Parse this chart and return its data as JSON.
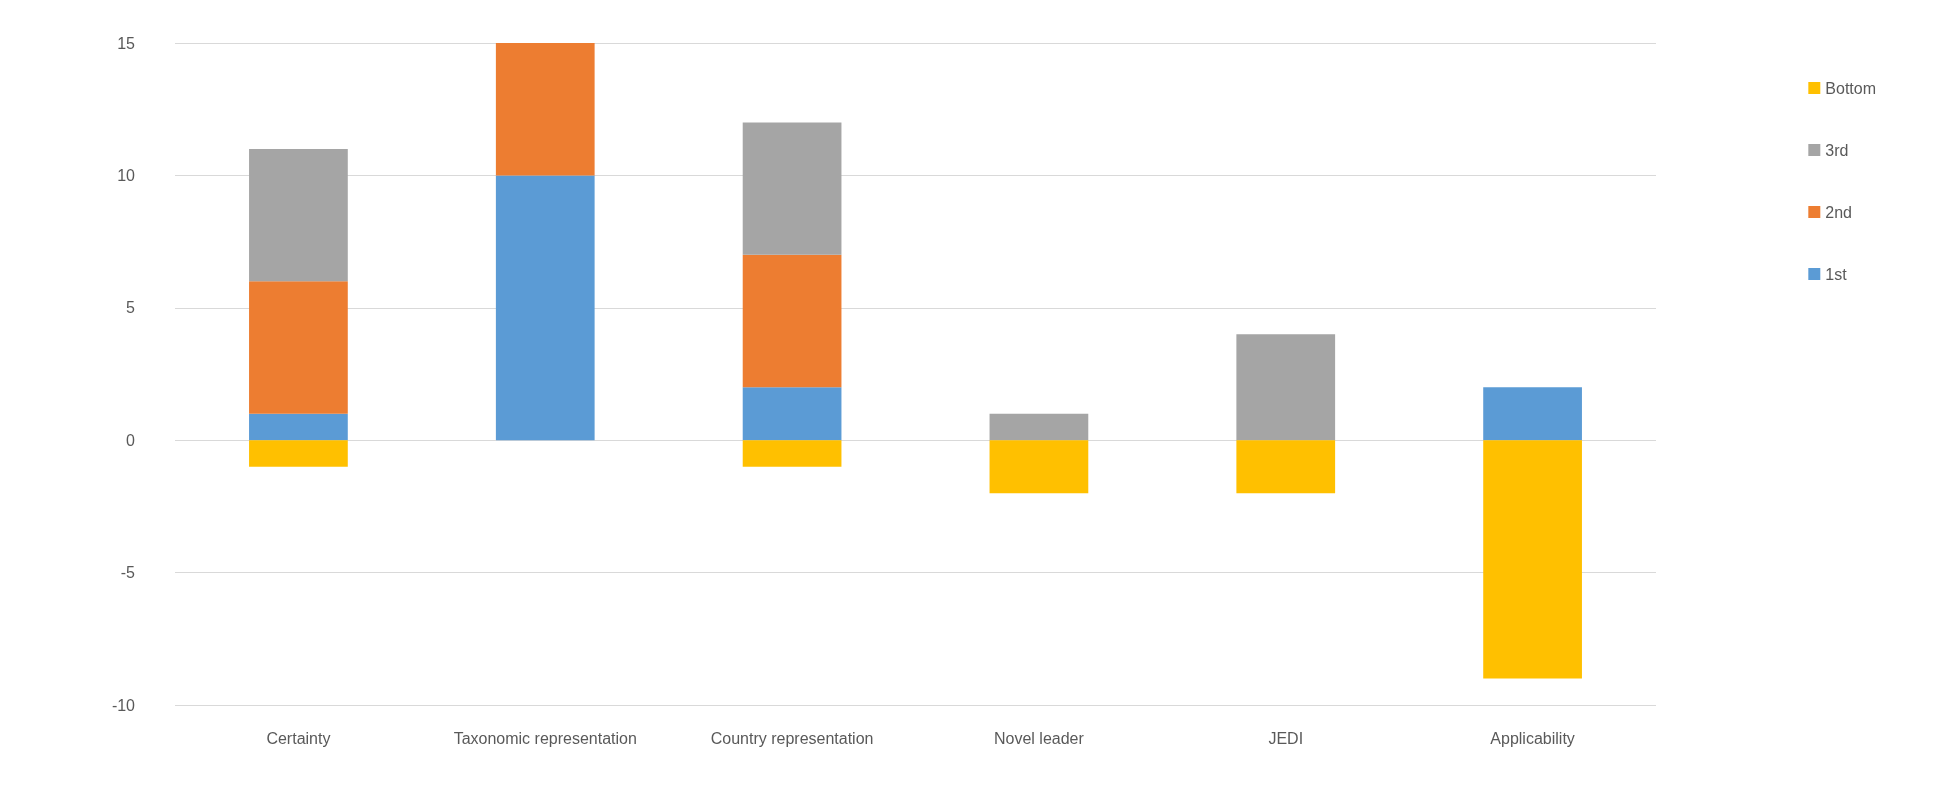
{
  "chart_data": {
    "type": "bar",
    "stacked": true,
    "categories": [
      "Certainty",
      "Taxonomic representation",
      "Country representation",
      "Novel leader",
      "JEDI",
      "Applicability"
    ],
    "series": [
      {
        "name": "1st",
        "color": "#5b9bd5",
        "values": [
          1,
          10,
          2,
          0,
          0,
          2
        ]
      },
      {
        "name": "2nd",
        "color": "#ed7d31",
        "values": [
          5,
          5,
          5,
          0,
          0,
          0
        ]
      },
      {
        "name": "3rd",
        "color": "#a5a5a5",
        "values": [
          5,
          0,
          5,
          1,
          4,
          0
        ]
      },
      {
        "name": "Bottom",
        "color": "#ffc000",
        "values": [
          -1,
          0,
          -1,
          -2,
          -2,
          -9
        ]
      }
    ],
    "ylim": [
      -10,
      15
    ],
    "yticks": [
      -10,
      -5,
      0,
      5,
      10,
      15
    ],
    "grid": "y",
    "legend": "right"
  }
}
